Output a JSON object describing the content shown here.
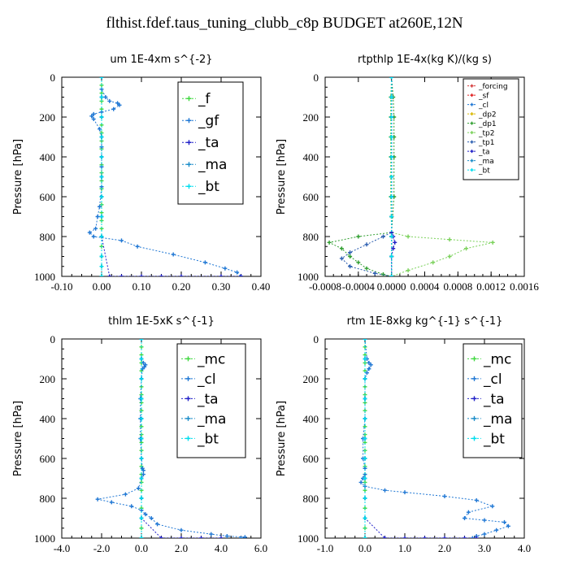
{
  "title": "flthist.fdef.taus_tuning_clubb_c8p  BUDGET at260E,12N",
  "colors": {
    "forcing": "#d43a3a",
    "sf": "#e02020",
    "cl": "#1f77d4",
    "dp2": "#d9b800",
    "dp1": "#2f9e2f",
    "tp2": "#7ad15a",
    "tp1": "#2a5db0",
    "ta": "#2020c8",
    "ma": "#1a8cc8",
    "bt": "#00ddee",
    "f": "#40d840",
    "gf": "#1f77d4",
    "mc": "#40d840"
  },
  "chart_data": [
    {
      "type": "line",
      "title": "um   1E-4xm s^{-2}",
      "ylabel": "Pressure [hPa]",
      "xlim": [
        -0.1,
        0.4
      ],
      "ylim": [
        1000,
        0
      ],
      "xticks": [
        "-0.10",
        "0.00",
        "0.10",
        "0.20",
        "0.30",
        "0.40"
      ],
      "yticks": [
        "0",
        "200",
        "400",
        "600",
        "800",
        "1000"
      ],
      "legend_position": "top-right",
      "series": [
        {
          "name": "_f",
          "color_key": "f",
          "x": [
            0,
            0,
            0,
            0,
            0,
            0,
            0,
            0,
            0,
            0,
            0,
            0,
            0,
            0,
            0,
            0,
            0,
            0,
            0,
            0,
            0,
            0,
            0,
            0,
            0
          ],
          "y": [
            0,
            40,
            80,
            120,
            160,
            200,
            240,
            280,
            320,
            360,
            400,
            440,
            480,
            520,
            560,
            600,
            640,
            680,
            720,
            760,
            800,
            850,
            900,
            950,
            1000
          ]
        },
        {
          "name": "_gf",
          "color_key": "gf",
          "x": [
            0,
            0,
            0.01,
            0.02,
            0.04,
            0.045,
            0.03,
            0.0,
            -0.02,
            -0.025,
            -0.02,
            -0.005,
            0.0,
            0.0,
            0.0,
            0.0,
            0.0,
            0.0,
            -0.005,
            -0.01,
            -0.015,
            -0.03,
            -0.02,
            0.05,
            0.09,
            0.18,
            0.26,
            0.31,
            0.34,
            0.35
          ],
          "y": [
            0,
            60,
            100,
            120,
            130,
            140,
            160,
            175,
            185,
            195,
            210,
            260,
            300,
            350,
            400,
            450,
            500,
            550,
            650,
            700,
            760,
            780,
            800,
            820,
            850,
            890,
            930,
            960,
            980,
            1000
          ]
        },
        {
          "name": "_ta",
          "color_key": "ta",
          "x": [
            0,
            0,
            0,
            0,
            0,
            0,
            0,
            0,
            0,
            0.02,
            0.05,
            0.1,
            0.15,
            0.2,
            0.3,
            0.35
          ],
          "y": [
            0,
            100,
            200,
            300,
            400,
            500,
            600,
            700,
            800,
            1000,
            1000,
            1000,
            1000,
            1000,
            1000,
            1000
          ]
        },
        {
          "name": "_ma",
          "color_key": "ma",
          "x": [
            0,
            0,
            0,
            0,
            0,
            0,
            0,
            0,
            0,
            0,
            0,
            0
          ],
          "y": [
            0,
            100,
            200,
            300,
            400,
            500,
            600,
            700,
            800,
            900,
            950,
            1000
          ]
        },
        {
          "name": "_bt",
          "color_key": "bt",
          "x": [
            0,
            0,
            0,
            0,
            0,
            0,
            0,
            0,
            0,
            0,
            0,
            0
          ],
          "y": [
            0,
            100,
            200,
            300,
            400,
            500,
            600,
            700,
            800,
            900,
            950,
            1000
          ]
        }
      ]
    },
    {
      "type": "line",
      "title": "rtpthlp   1E-4x(kg K)/(kg s)",
      "ylabel": "Pressure [hPa]",
      "xlim": [
        -0.0008,
        0.0016
      ],
      "ylim": [
        1000,
        0
      ],
      "xticks": [
        "-0.0008",
        "-0.0004",
        "0.0000",
        "0.0004",
        "0.0008",
        "0.0012",
        "0.0016"
      ],
      "yticks": [
        "0",
        "200",
        "400",
        "600",
        "800",
        "1000"
      ],
      "legend_position": "top-right",
      "series": [
        {
          "name": "_forcing",
          "color_key": "forcing",
          "x": [
            0,
            0,
            0,
            0,
            0,
            0,
            0,
            0,
            0,
            0,
            0
          ],
          "y": [
            0,
            100,
            200,
            300,
            400,
            500,
            600,
            700,
            800,
            900,
            1000
          ]
        },
        {
          "name": "_sf",
          "color_key": "sf",
          "x": [
            0,
            0,
            0,
            0,
            0,
            0,
            0,
            0,
            0,
            0,
            0
          ],
          "y": [
            0,
            100,
            200,
            300,
            400,
            500,
            600,
            700,
            800,
            900,
            1000
          ]
        },
        {
          "name": "_cl",
          "color_key": "cl",
          "x": [
            0,
            0,
            0,
            0,
            0,
            0,
            0,
            0,
            0,
            0,
            0
          ],
          "y": [
            0,
            100,
            200,
            300,
            400,
            500,
            600,
            700,
            800,
            900,
            1000
          ]
        },
        {
          "name": "_dp2",
          "color_key": "dp2",
          "x": [
            0,
            0,
            0,
            0,
            0,
            0,
            0,
            0,
            0,
            0,
            0
          ],
          "y": [
            0,
            100,
            200,
            300,
            400,
            500,
            600,
            700,
            800,
            900,
            1000
          ]
        },
        {
          "name": "_dp1",
          "color_key": "dp1",
          "x": [
            0,
            2e-05,
            3e-05,
            3e-05,
            3e-05,
            3e-05,
            0.0,
            -0.0004,
            -0.00075,
            -0.0006,
            -0.0005,
            -0.0004,
            -0.0003,
            -0.0001,
            0.0
          ],
          "y": [
            0,
            100,
            200,
            300,
            400,
            600,
            780,
            800,
            830,
            860,
            900,
            930,
            960,
            990,
            1000
          ]
        },
        {
          "name": "_tp2",
          "color_key": "tp2",
          "x": [
            0,
            -1e-05,
            -1e-05,
            -1e-05,
            -1e-05,
            -1e-05,
            0.0,
            0.0002,
            0.0007,
            0.00122,
            0.0009,
            0.0007,
            0.0005,
            0.0002,
            0.0
          ],
          "y": [
            0,
            100,
            200,
            300,
            400,
            600,
            780,
            800,
            815,
            830,
            860,
            900,
            930,
            970,
            1000
          ]
        },
        {
          "name": "_tp1",
          "color_key": "tp1",
          "x": [
            0,
            0,
            0,
            0,
            0,
            0,
            -0.0001,
            -0.0003,
            -0.0005,
            -0.0006,
            -0.0005,
            -0.0002,
            0.0
          ],
          "y": [
            0,
            100,
            200,
            400,
            600,
            780,
            800,
            840,
            880,
            910,
            950,
            985,
            1000
          ]
        },
        {
          "name": "_ta",
          "color_key": "ta",
          "x": [
            0,
            0,
            0,
            0,
            0,
            0,
            2e-05,
            4e-05,
            2e-05,
            0,
            0
          ],
          "y": [
            0,
            100,
            200,
            400,
            600,
            780,
            800,
            830,
            860,
            900,
            1000
          ]
        },
        {
          "name": "_ma",
          "color_key": "ma",
          "x": [
            0,
            0,
            0,
            0,
            0,
            0,
            0,
            0,
            0,
            0,
            0
          ],
          "y": [
            0,
            100,
            200,
            300,
            400,
            500,
            600,
            700,
            800,
            900,
            1000
          ]
        },
        {
          "name": "_bt",
          "color_key": "bt",
          "x": [
            0,
            0,
            0,
            0,
            0,
            0,
            0,
            0,
            0,
            0,
            0
          ],
          "y": [
            0,
            100,
            200,
            300,
            400,
            500,
            600,
            700,
            800,
            900,
            1000
          ]
        }
      ]
    },
    {
      "type": "line",
      "title": "thlm   1E-5xK s^{-1}",
      "ylabel": "Pressure [hPa]",
      "xlim": [
        -4.0,
        6.0
      ],
      "ylim": [
        1000,
        0
      ],
      "xticks": [
        "-4.0",
        "-2.0",
        "0.0",
        "2.0",
        "4.0",
        "6.0"
      ],
      "yticks": [
        "0",
        "200",
        "400",
        "600",
        "800",
        "1000"
      ],
      "legend_position": "top-right",
      "series": [
        {
          "name": "_mc",
          "color_key": "mc",
          "x": [
            0,
            0,
            0,
            0,
            0,
            0,
            0,
            0,
            0,
            0,
            0,
            0,
            0,
            0,
            0,
            0,
            0,
            0,
            0,
            0,
            0,
            0,
            0,
            0,
            0
          ],
          "y": [
            0,
            40,
            80,
            120,
            160,
            200,
            240,
            280,
            320,
            360,
            400,
            440,
            480,
            520,
            560,
            600,
            640,
            680,
            720,
            760,
            800,
            850,
            900,
            950,
            1000
          ]
        },
        {
          "name": "_cl",
          "color_key": "cl",
          "x": [
            0,
            0,
            0.1,
            0.2,
            0.15,
            0.05,
            0,
            -0.05,
            -0.05,
            -0.05,
            0,
            0.05,
            0.1,
            0.1,
            0,
            -0.15,
            -0.8,
            -2.2,
            -1.5,
            -0.5,
            0,
            0.2,
            0.5,
            0.8,
            2.0,
            3.5,
            4.3,
            5.2,
            5.0
          ],
          "y": [
            0,
            100,
            120,
            130,
            140,
            150,
            200,
            300,
            400,
            500,
            600,
            650,
            660,
            680,
            700,
            750,
            780,
            805,
            820,
            840,
            860,
            880,
            900,
            930,
            960,
            980,
            990,
            995,
            1000
          ]
        },
        {
          "name": "_ta",
          "color_key": "ta",
          "x": [
            0,
            0,
            0,
            0,
            0,
            0,
            0,
            0,
            0,
            0,
            1,
            2,
            3,
            4
          ],
          "y": [
            0,
            100,
            200,
            300,
            400,
            500,
            600,
            700,
            800,
            900,
            1000,
            1000,
            1000,
            1000
          ]
        },
        {
          "name": "_ma",
          "color_key": "ma",
          "x": [
            0,
            0,
            0,
            0,
            0,
            0,
            0,
            0,
            0,
            0,
            0
          ],
          "y": [
            0,
            100,
            200,
            300,
            400,
            500,
            600,
            700,
            800,
            900,
            1000
          ]
        },
        {
          "name": "_bt",
          "color_key": "bt",
          "x": [
            0,
            0,
            0,
            0,
            0,
            0,
            0,
            0,
            0,
            0,
            0
          ],
          "y": [
            0,
            100,
            200,
            300,
            400,
            500,
            600,
            700,
            800,
            900,
            1000
          ]
        }
      ]
    },
    {
      "type": "line",
      "title": "rtm   1E-8xkg kg^{-1} s^{-1}",
      "ylabel": "Pressure [hPa]",
      "xlim": [
        -1.0,
        4.0
      ],
      "ylim": [
        1000,
        0
      ],
      "xticks": [
        "-1.0",
        "0.0",
        "1.0",
        "2.0",
        "3.0",
        "4.0"
      ],
      "yticks": [
        "0",
        "200",
        "400",
        "600",
        "800",
        "1000"
      ],
      "legend_position": "top-right",
      "series": [
        {
          "name": "_mc",
          "color_key": "mc",
          "x": [
            0,
            0,
            0,
            0,
            0,
            0,
            0,
            0,
            0,
            0,
            0,
            0,
            0,
            0,
            0,
            0,
            0,
            0,
            0,
            0,
            0,
            0,
            0,
            0,
            0
          ],
          "y": [
            0,
            40,
            80,
            120,
            160,
            200,
            240,
            280,
            320,
            360,
            400,
            440,
            480,
            520,
            560,
            600,
            640,
            680,
            720,
            760,
            800,
            850,
            900,
            950,
            1000
          ]
        },
        {
          "name": "_cl",
          "color_key": "cl",
          "x": [
            0,
            0.05,
            0.1,
            0.15,
            0.1,
            0.05,
            0.0,
            0.0,
            0.0,
            -0.05,
            -0.05,
            0.0,
            0.0,
            -0.05,
            -0.1,
            0.0,
            0.5,
            1.0,
            2.0,
            2.8,
            3.2,
            2.6,
            2.5,
            3.0,
            3.5,
            3.6,
            3.3,
            3.0,
            2.8,
            2.7
          ],
          "y": [
            0,
            100,
            120,
            130,
            150,
            170,
            200,
            300,
            400,
            500,
            600,
            650,
            680,
            700,
            720,
            740,
            760,
            770,
            790,
            810,
            840,
            870,
            900,
            910,
            920,
            940,
            960,
            980,
            990,
            1000
          ]
        },
        {
          "name": "_ta",
          "color_key": "ta",
          "x": [
            0,
            0,
            0,
            0,
            0,
            0,
            0,
            0,
            0,
            0,
            0.5,
            1.0,
            1.5,
            2.0,
            2.5,
            2.8
          ],
          "y": [
            0,
            100,
            200,
            300,
            400,
            500,
            600,
            700,
            800,
            900,
            1000,
            1000,
            1000,
            1000,
            1000,
            1000
          ]
        },
        {
          "name": "_ma",
          "color_key": "ma",
          "x": [
            0,
            0,
            0,
            0,
            0,
            0,
            0,
            0,
            0,
            0,
            0
          ],
          "y": [
            0,
            100,
            200,
            300,
            400,
            500,
            600,
            700,
            800,
            900,
            1000
          ]
        },
        {
          "name": "_bt",
          "color_key": "bt",
          "x": [
            0,
            0,
            0,
            0,
            0,
            0,
            0,
            0,
            0,
            0,
            0
          ],
          "y": [
            0,
            100,
            200,
            300,
            400,
            500,
            600,
            700,
            800,
            900,
            1000
          ]
        }
      ]
    }
  ]
}
